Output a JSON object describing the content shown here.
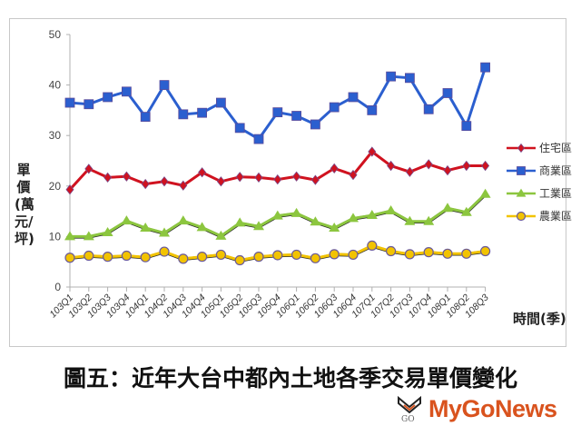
{
  "chart_data": {
    "type": "line",
    "title": "",
    "xlabel": "時間(季)",
    "ylabel": "單價(萬元/坪)",
    "ylim": [
      0,
      50
    ],
    "yticks": [
      0,
      10,
      20,
      30,
      40,
      50
    ],
    "grid": false,
    "legend_position": "right",
    "categories": [
      "103Q1",
      "103Q2",
      "103Q3",
      "103Q4",
      "104Q1",
      "104Q2",
      "104Q3",
      "104Q4",
      "105Q1",
      "105Q2",
      "105Q3",
      "105Q4",
      "106Q1",
      "106Q2",
      "106Q3",
      "106Q4",
      "107Q1",
      "107Q2",
      "107Q3",
      "107Q4",
      "108Q1",
      "108Q2",
      "108Q3"
    ],
    "series": [
      {
        "name": "住宅區",
        "color": "#d0121f",
        "marker": "diamond",
        "values": [
          19.3,
          23.4,
          21.7,
          21.9,
          20.4,
          20.9,
          20.1,
          22.7,
          20.9,
          21.8,
          21.7,
          21.3,
          21.9,
          21.2,
          23.5,
          22.2,
          26.8,
          24.0,
          22.8,
          24.3,
          23.1,
          24.0,
          24.0
        ]
      },
      {
        "name": "商業區",
        "color": "#2b5fcf",
        "marker": "square",
        "values": [
          36.5,
          36.2,
          37.6,
          38.7,
          33.7,
          40.0,
          34.2,
          34.5,
          36.5,
          31.5,
          29.3,
          34.6,
          33.9,
          32.2,
          35.6,
          37.6,
          35.0,
          41.7,
          41.4,
          35.2,
          38.4,
          31.9,
          43.5
        ]
      },
      {
        "name": "工業區",
        "color": "#8cc63f",
        "marker": "triangle",
        "values": [
          10.0,
          10.0,
          10.8,
          13.1,
          11.7,
          10.7,
          13.1,
          11.8,
          10.1,
          12.7,
          12.0,
          14.1,
          14.6,
          12.9,
          11.7,
          13.6,
          14.2,
          15.1,
          13.0,
          13.0,
          15.6,
          14.8,
          18.4
        ]
      },
      {
        "name": "農業區",
        "color": "#f2c300",
        "marker": "circle",
        "values": [
          5.8,
          6.2,
          6.0,
          6.2,
          5.9,
          7.0,
          5.6,
          6.0,
          6.4,
          5.3,
          6.0,
          6.3,
          6.4,
          5.7,
          6.5,
          6.4,
          8.2,
          7.1,
          6.5,
          6.9,
          6.6,
          6.6,
          7.1
        ]
      }
    ]
  },
  "caption": "圖五：近年大台中都內土地各季交易單價變化",
  "logo": {
    "text": "MyGoNews",
    "mark_text": "GO"
  }
}
